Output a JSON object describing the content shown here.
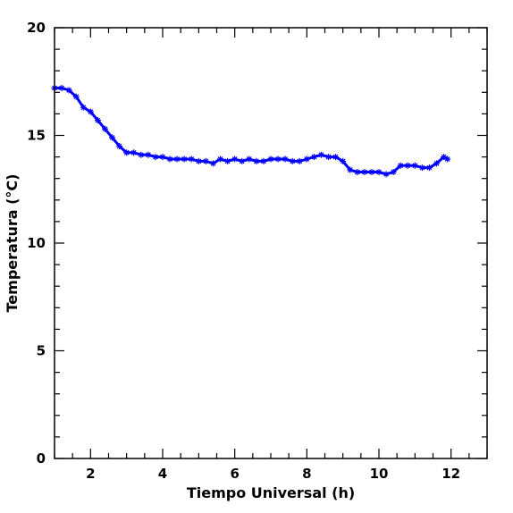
{
  "chart_data": {
    "type": "scatter",
    "xlabel": "Tiempo Universal (h)",
    "ylabel": "Temperatura (°C)",
    "xlim": [
      1,
      13
    ],
    "ylim": [
      0,
      20
    ],
    "x_ticks": [
      2,
      4,
      6,
      8,
      10,
      12
    ],
    "y_ticks": [
      0,
      5,
      10,
      15,
      20
    ],
    "x_minor_step": 0.5,
    "y_minor_step": 1,
    "grid": false,
    "marker": "star",
    "color": "#0000ff",
    "series": [
      {
        "x": [
          1.0,
          1.2,
          1.4,
          1.6,
          1.8,
          2.0,
          2.2,
          2.4,
          2.6,
          2.8,
          3.0,
          3.2,
          3.4,
          3.6,
          3.8,
          4.0,
          4.2,
          4.4,
          4.6,
          4.8,
          5.0,
          5.2,
          5.4,
          5.6,
          5.8,
          6.0,
          6.2,
          6.4,
          6.6,
          6.8,
          7.0,
          7.2,
          7.4,
          7.6,
          7.8,
          8.0,
          8.2,
          8.4,
          8.6,
          8.8,
          9.0,
          9.2,
          9.4,
          9.6,
          9.8,
          10.0,
          10.2,
          10.4,
          10.6,
          10.8,
          11.0,
          11.2,
          11.4,
          11.6,
          11.8,
          11.9
        ],
        "y": [
          17.2,
          17.2,
          17.1,
          16.8,
          16.3,
          16.1,
          15.7,
          15.3,
          14.9,
          14.5,
          14.2,
          14.2,
          14.1,
          14.1,
          14.0,
          14.0,
          13.9,
          13.9,
          13.9,
          13.9,
          13.8,
          13.8,
          13.7,
          13.9,
          13.8,
          13.9,
          13.8,
          13.9,
          13.8,
          13.8,
          13.9,
          13.9,
          13.9,
          13.8,
          13.8,
          13.9,
          14.0,
          14.1,
          14.0,
          14.0,
          13.8,
          13.4,
          13.3,
          13.3,
          13.3,
          13.3,
          13.2,
          13.3,
          13.6,
          13.6,
          13.6,
          13.5,
          13.5,
          13.7,
          14.0,
          13.9
        ]
      }
    ]
  }
}
